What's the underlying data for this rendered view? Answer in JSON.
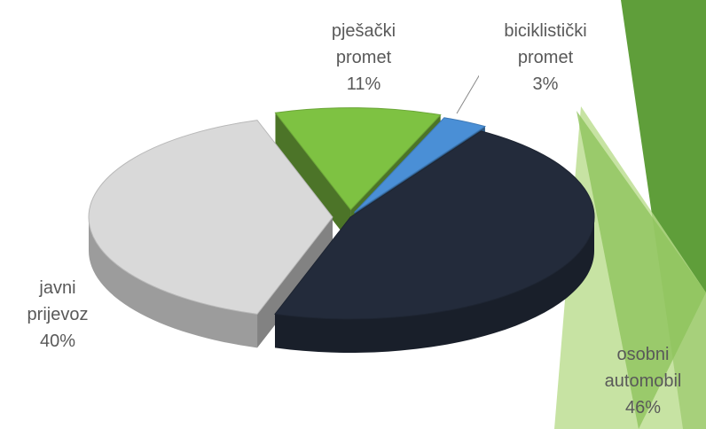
{
  "chart_data": {
    "type": "pie",
    "categories": [
      "pješački promet",
      "biciklistički promet",
      "osobni automobil",
      "javni prijevoz"
    ],
    "values": [
      11,
      3,
      46,
      40
    ],
    "value_labels": [
      "11%",
      "3%",
      "46%",
      "40%"
    ],
    "colors": [
      "#7ec242",
      "#4a8fd6",
      "#232b3b",
      "#d9d9d9"
    ]
  }
}
